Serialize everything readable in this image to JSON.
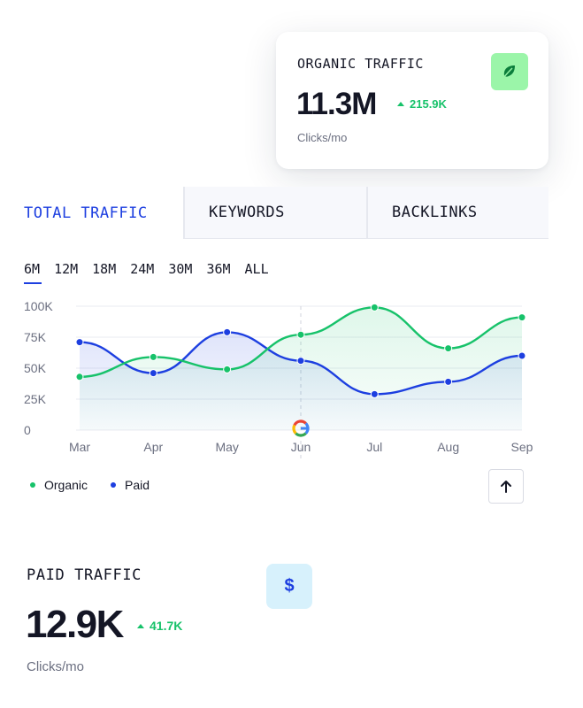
{
  "organic_card": {
    "title": "ORGANIC TRAFFIC",
    "value": "11.3M",
    "delta": "215.9K",
    "unit": "Clicks/mo",
    "icon": "leaf-icon",
    "accent": "#9bf5a9"
  },
  "tabs": [
    {
      "label": "TOTAL TRAFFIC",
      "active": true
    },
    {
      "label": "KEYWORDS",
      "active": false
    },
    {
      "label": "BACKLINKS",
      "active": false
    }
  ],
  "ranges": [
    "6M",
    "12M",
    "18M",
    "24M",
    "30M",
    "36M",
    "ALL"
  ],
  "active_range": "6M",
  "chart_data": {
    "type": "line",
    "categories": [
      "Mar",
      "Apr",
      "May",
      "Jun",
      "Jul",
      "Aug",
      "Sep"
    ],
    "yticks": [
      "100K",
      "75K",
      "50K",
      "25K",
      "0"
    ],
    "ylim": [
      0,
      100000
    ],
    "series": [
      {
        "name": "Organic",
        "color": "#17c26a",
        "values": [
          43000,
          59000,
          49000,
          77000,
          99000,
          66000,
          91000
        ]
      },
      {
        "name": "Paid",
        "color": "#1d3fe0",
        "values": [
          71000,
          46000,
          79000,
          56000,
          29000,
          39000,
          60000
        ]
      }
    ],
    "marker_icon": "google-icon",
    "marker_category": "Jun",
    "grid": true,
    "legend": "bottom-left"
  },
  "legend": [
    {
      "label": "Organic",
      "color": "#17c26a"
    },
    {
      "label": "Paid",
      "color": "#1d3fe0"
    }
  ],
  "up_button_icon": "arrow-up-icon",
  "paid_card": {
    "title": "PAID TRAFFIC",
    "value": "12.9K",
    "delta": "41.7K",
    "unit": "Clicks/mo",
    "icon": "dollar-icon",
    "icon_glyph": "$",
    "accent": "#d7f1fc"
  }
}
